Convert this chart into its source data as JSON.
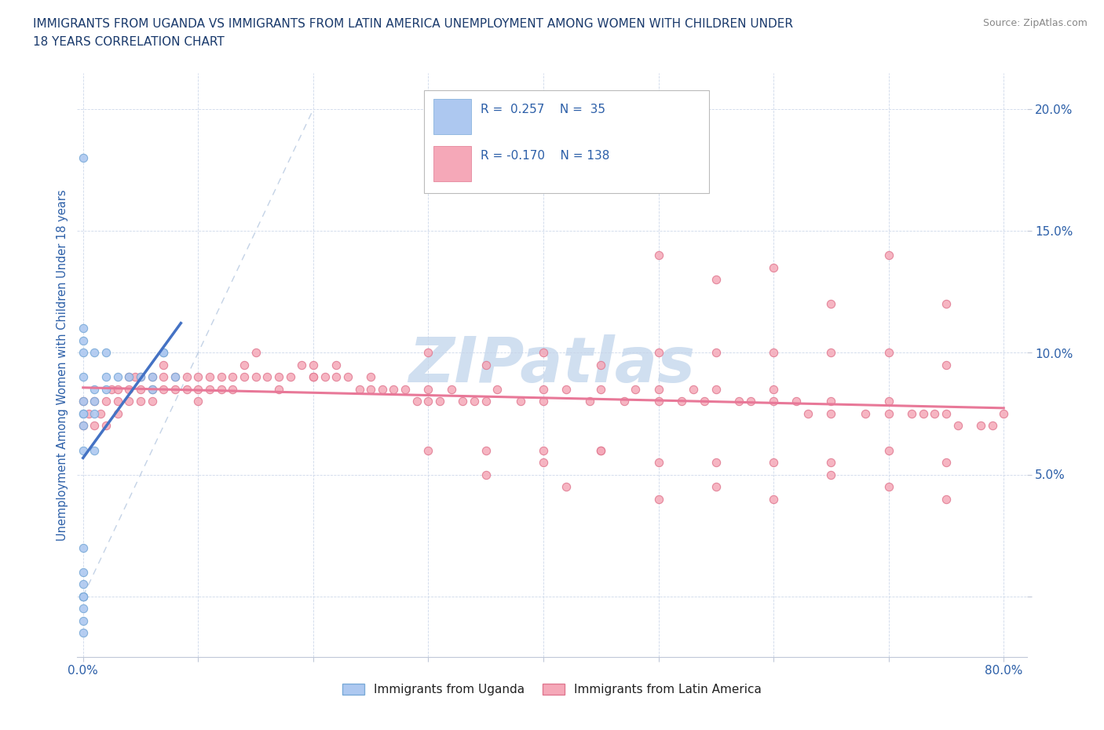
{
  "title_line1": "IMMIGRANTS FROM UGANDA VS IMMIGRANTS FROM LATIN AMERICA UNEMPLOYMENT AMONG WOMEN WITH CHILDREN UNDER",
  "title_line2": "18 YEARS CORRELATION CHART",
  "source_text": "Source: ZipAtlas.com",
  "ylabel": "Unemployment Among Women with Children Under 18 years",
  "xlim": [
    -0.005,
    0.82
  ],
  "ylim": [
    -0.025,
    0.215
  ],
  "x_ticks": [
    0.0,
    0.1,
    0.2,
    0.3,
    0.4,
    0.5,
    0.6,
    0.7,
    0.8
  ],
  "x_tick_labels": [
    "0.0%",
    "",
    "",
    "",
    "",
    "",
    "",
    "",
    "80.0%"
  ],
  "y_ticks": [
    0.0,
    0.05,
    0.1,
    0.15,
    0.2
  ],
  "y_tick_labels": [
    "",
    "5.0%",
    "10.0%",
    "15.0%",
    "20.0%"
  ],
  "legend_uganda_R": "0.257",
  "legend_uganda_N": "35",
  "legend_latinam_R": "-0.170",
  "legend_latinam_N": "138",
  "color_uganda_fill": "#adc8f0",
  "color_uganda_edge": "#7aaad8",
  "color_latinam_fill": "#f5a8b8",
  "color_latinam_edge": "#e07890",
  "color_line_uganda": "#4472c4",
  "color_line_latinam": "#e87898",
  "color_dashed": "#b0c4de",
  "color_title": "#1a3a6c",
  "color_axis_labels": "#2c5fa8",
  "color_source": "#888888",
  "watermark_text": "ZIPatlas",
  "watermark_color": "#d0dff0",
  "uganda_x": [
    0.0,
    0.0,
    0.0,
    0.0,
    0.0,
    0.0,
    0.0,
    0.0,
    0.0,
    0.0,
    0.0,
    0.0,
    0.0,
    0.0,
    0.0,
    0.01,
    0.01,
    0.01,
    0.02,
    0.02,
    0.03,
    0.04,
    0.05,
    0.06,
    0.07,
    0.08,
    0.0,
    0.0,
    0.0,
    0.01,
    0.01,
    0.02,
    0.06,
    0.07,
    0.0
  ],
  "uganda_y": [
    0.0,
    0.0,
    0.0,
    0.005,
    0.01,
    0.02,
    0.06,
    0.07,
    0.075,
    0.08,
    0.09,
    0.1,
    0.105,
    0.11,
    0.075,
    0.08,
    0.085,
    0.1,
    0.09,
    0.1,
    0.09,
    0.09,
    0.09,
    0.085,
    0.1,
    0.09,
    -0.005,
    -0.01,
    -0.015,
    0.06,
    0.075,
    0.085,
    0.09,
    0.1,
    0.18
  ],
  "latinam_x": [
    0.0,
    0.0,
    0.005,
    0.01,
    0.01,
    0.015,
    0.02,
    0.02,
    0.025,
    0.03,
    0.03,
    0.03,
    0.04,
    0.04,
    0.04,
    0.045,
    0.05,
    0.05,
    0.05,
    0.06,
    0.06,
    0.06,
    0.07,
    0.07,
    0.07,
    0.08,
    0.08,
    0.09,
    0.09,
    0.1,
    0.1,
    0.1,
    0.11,
    0.11,
    0.12,
    0.12,
    0.13,
    0.13,
    0.14,
    0.14,
    0.15,
    0.15,
    0.16,
    0.17,
    0.17,
    0.18,
    0.19,
    0.2,
    0.2,
    0.21,
    0.22,
    0.22,
    0.23,
    0.24,
    0.25,
    0.26,
    0.27,
    0.28,
    0.29,
    0.3,
    0.3,
    0.31,
    0.32,
    0.33,
    0.34,
    0.35,
    0.36,
    0.38,
    0.4,
    0.4,
    0.42,
    0.44,
    0.45,
    0.47,
    0.48,
    0.5,
    0.5,
    0.52,
    0.53,
    0.54,
    0.55,
    0.57,
    0.58,
    0.6,
    0.6,
    0.62,
    0.63,
    0.65,
    0.65,
    0.68,
    0.7,
    0.7,
    0.72,
    0.73,
    0.74,
    0.75,
    0.76,
    0.78,
    0.79,
    0.8,
    0.35,
    0.4,
    0.42,
    0.45,
    0.5,
    0.55,
    0.6,
    0.65,
    0.7,
    0.75,
    0.3,
    0.35,
    0.4,
    0.45,
    0.5,
    0.55,
    0.6,
    0.65,
    0.7,
    0.75,
    0.2,
    0.25,
    0.3,
    0.35,
    0.4,
    0.45,
    0.5,
    0.55,
    0.6,
    0.65,
    0.7,
    0.75,
    0.5,
    0.55,
    0.6,
    0.65,
    0.7,
    0.75
  ],
  "latinam_y": [
    0.08,
    0.07,
    0.075,
    0.08,
    0.07,
    0.075,
    0.08,
    0.07,
    0.085,
    0.085,
    0.08,
    0.075,
    0.09,
    0.085,
    0.08,
    0.09,
    0.09,
    0.085,
    0.08,
    0.09,
    0.085,
    0.08,
    0.09,
    0.085,
    0.095,
    0.09,
    0.085,
    0.09,
    0.085,
    0.09,
    0.085,
    0.08,
    0.09,
    0.085,
    0.09,
    0.085,
    0.09,
    0.085,
    0.095,
    0.09,
    0.1,
    0.09,
    0.09,
    0.085,
    0.09,
    0.09,
    0.095,
    0.095,
    0.09,
    0.09,
    0.095,
    0.09,
    0.09,
    0.085,
    0.085,
    0.085,
    0.085,
    0.085,
    0.08,
    0.085,
    0.08,
    0.08,
    0.085,
    0.08,
    0.08,
    0.08,
    0.085,
    0.08,
    0.085,
    0.08,
    0.085,
    0.08,
    0.085,
    0.08,
    0.085,
    0.08,
    0.085,
    0.08,
    0.085,
    0.08,
    0.085,
    0.08,
    0.08,
    0.08,
    0.085,
    0.08,
    0.075,
    0.075,
    0.08,
    0.075,
    0.075,
    0.08,
    0.075,
    0.075,
    0.075,
    0.075,
    0.07,
    0.07,
    0.07,
    0.075,
    0.05,
    0.055,
    0.045,
    0.06,
    0.04,
    0.045,
    0.04,
    0.05,
    0.045,
    0.04,
    0.06,
    0.06,
    0.06,
    0.06,
    0.055,
    0.055,
    0.055,
    0.055,
    0.06,
    0.055,
    0.09,
    0.09,
    0.1,
    0.095,
    0.1,
    0.095,
    0.1,
    0.1,
    0.1,
    0.1,
    0.1,
    0.095,
    0.14,
    0.13,
    0.135,
    0.12,
    0.14,
    0.12
  ]
}
